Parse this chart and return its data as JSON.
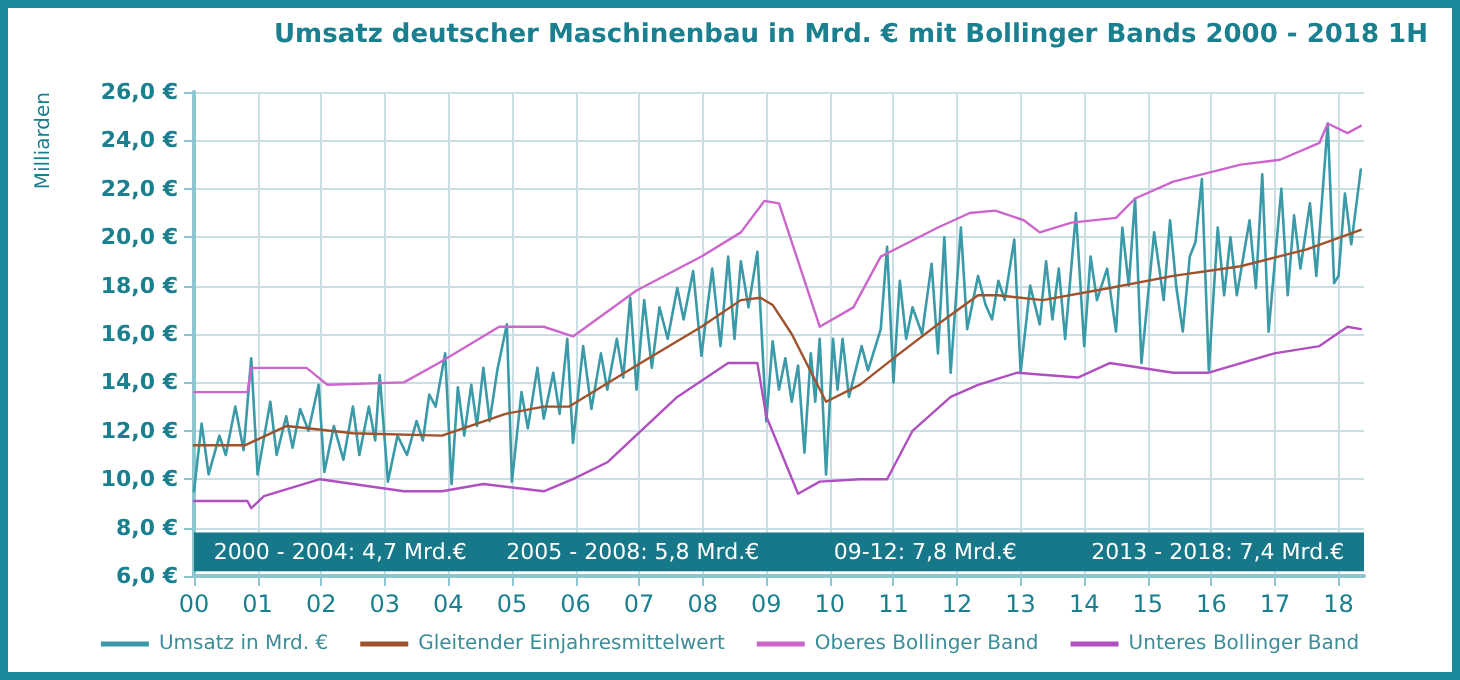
{
  "chart_data": {
    "type": "line",
    "title": "Umsatz deutscher Maschinenbau in Mrd. € mit Bollinger Bands 2000 - 2018 1H",
    "ylabel": "Milliarden",
    "xlim": [
      2000,
      2018.4
    ],
    "ylim": [
      6,
      26
    ],
    "xticks": [
      {
        "value": 2000,
        "label": "00"
      },
      {
        "value": 2001,
        "label": "01"
      },
      {
        "value": 2002,
        "label": "02"
      },
      {
        "value": 2003,
        "label": "03"
      },
      {
        "value": 2004,
        "label": "04"
      },
      {
        "value": 2005,
        "label": "05"
      },
      {
        "value": 2006,
        "label": "06"
      },
      {
        "value": 2007,
        "label": "07"
      },
      {
        "value": 2008,
        "label": "08"
      },
      {
        "value": 2009,
        "label": "09"
      },
      {
        "value": 2010,
        "label": "10"
      },
      {
        "value": 2011,
        "label": "11"
      },
      {
        "value": 2012,
        "label": "12"
      },
      {
        "value": 2013,
        "label": "13"
      },
      {
        "value": 2014,
        "label": "14"
      },
      {
        "value": 2015,
        "label": "15"
      },
      {
        "value": 2016,
        "label": "16"
      },
      {
        "value": 2017,
        "label": "17"
      },
      {
        "value": 2018,
        "label": "18"
      }
    ],
    "yticks": [
      {
        "value": 6,
        "label": "6,0 €"
      },
      {
        "value": 8,
        "label": "8,0 €"
      },
      {
        "value": 10,
        "label": "10,0 €"
      },
      {
        "value": 12,
        "label": "12,0 €"
      },
      {
        "value": 14,
        "label": "14,0 €"
      },
      {
        "value": 16,
        "label": "16,0 €"
      },
      {
        "value": 18,
        "label": "18,0 €"
      },
      {
        "value": 20,
        "label": "20,0 €"
      },
      {
        "value": 22,
        "label": "22,0 €"
      },
      {
        "value": 24,
        "label": "24,0 €"
      },
      {
        "value": 26,
        "label": "26,0 €"
      }
    ],
    "grid": true,
    "legend": "bottom",
    "marker": "none",
    "line_style": "solid",
    "bands": [
      {
        "axis": "y",
        "from": 6.2,
        "to": 7.8,
        "color": "#17788a"
      }
    ],
    "annotations": [
      "2000 - 2004: 4,7 Mrd.€",
      "2005 - 2008: 5,8 Mrd.€",
      "09-12: 7,8 Mrd.€",
      "2013 - 2018: 7,4 Mrd.€"
    ],
    "series": [
      {
        "name": "Umsatz in Mrd. €",
        "color": "#3a9aa8",
        "x": [
          2000.0,
          2000.12,
          2000.23,
          2000.4,
          2000.5,
          2000.65,
          2000.78,
          2000.9,
          2001.0,
          2001.2,
          2001.3,
          2001.45,
          2001.55,
          2001.67,
          2001.8,
          2001.96,
          2002.05,
          2002.2,
          2002.35,
          2002.5,
          2002.6,
          2002.75,
          2002.85,
          2002.92,
          2003.05,
          2003.2,
          2003.35,
          2003.5,
          2003.6,
          2003.7,
          2003.8,
          2003.95,
          2004.05,
          2004.15,
          2004.25,
          2004.36,
          2004.45,
          2004.55,
          2004.65,
          2004.77,
          2004.92,
          2005.0,
          2005.15,
          2005.25,
          2005.4,
          2005.5,
          2005.65,
          2005.75,
          2005.87,
          2005.96,
          2006.12,
          2006.25,
          2006.4,
          2006.5,
          2006.65,
          2006.75,
          2006.86,
          2006.96,
          2007.08,
          2007.2,
          2007.32,
          2007.45,
          2007.6,
          2007.7,
          2007.85,
          2007.98,
          2008.15,
          2008.28,
          2008.4,
          2008.5,
          2008.6,
          2008.72,
          2008.86,
          2009.0,
          2009.1,
          2009.2,
          2009.3,
          2009.4,
          2009.5,
          2009.6,
          2009.7,
          2009.77,
          2009.84,
          2009.94,
          2010.05,
          2010.12,
          2010.2,
          2010.3,
          2010.5,
          2010.6,
          2010.8,
          2010.9,
          2011.0,
          2011.1,
          2011.2,
          2011.3,
          2011.45,
          2011.6,
          2011.7,
          2011.8,
          2011.9,
          2012.06,
          2012.16,
          2012.33,
          2012.45,
          2012.55,
          2012.65,
          2012.75,
          2012.9,
          2013.0,
          2013.15,
          2013.3,
          2013.4,
          2013.5,
          2013.6,
          2013.7,
          2013.87,
          2014.0,
          2014.1,
          2014.2,
          2014.36,
          2014.5,
          2014.6,
          2014.7,
          2014.8,
          2014.9,
          2015.1,
          2015.25,
          2015.35,
          2015.45,
          2015.55,
          2015.66,
          2015.75,
          2015.85,
          2015.96,
          2016.1,
          2016.2,
          2016.3,
          2016.4,
          2016.6,
          2016.7,
          2016.8,
          2016.9,
          2017.1,
          2017.2,
          2017.3,
          2017.4,
          2017.55,
          2017.65,
          2017.83,
          2017.93,
          2018.0,
          2018.1,
          2018.2,
          2018.35
        ],
        "values": [
          9.5,
          12.3,
          10.2,
          11.8,
          11.0,
          13.0,
          11.2,
          15.0,
          10.2,
          13.2,
          11.0,
          12.6,
          11.3,
          12.9,
          12.0,
          13.9,
          10.3,
          12.2,
          10.8,
          13.0,
          11.0,
          13.0,
          11.6,
          14.3,
          9.9,
          11.8,
          11.0,
          12.4,
          11.6,
          13.5,
          13.0,
          15.2,
          9.8,
          13.8,
          11.8,
          13.9,
          12.2,
          14.6,
          12.4,
          14.5,
          16.4,
          9.9,
          13.6,
          12.1,
          14.6,
          12.5,
          14.4,
          12.7,
          15.8,
          11.5,
          15.5,
          12.9,
          15.2,
          13.7,
          15.8,
          14.2,
          17.5,
          13.7,
          17.4,
          14.6,
          17.1,
          15.8,
          17.9,
          16.6,
          18.6,
          15.1,
          18.7,
          15.5,
          19.2,
          15.8,
          19.0,
          17.1,
          19.4,
          12.4,
          15.7,
          13.7,
          15.0,
          13.2,
          14.7,
          11.1,
          15.2,
          13.2,
          15.8,
          10.2,
          15.8,
          13.7,
          15.8,
          13.4,
          15.5,
          14.5,
          16.2,
          19.6,
          14.0,
          18.2,
          15.8,
          17.1,
          16.0,
          18.9,
          15.2,
          20.0,
          14.4,
          20.4,
          16.2,
          18.4,
          17.2,
          16.6,
          18.2,
          17.4,
          19.9,
          14.4,
          18.0,
          16.4,
          19.0,
          16.6,
          18.7,
          15.8,
          21.0,
          15.5,
          19.2,
          17.4,
          18.7,
          16.1,
          20.4,
          18.0,
          21.6,
          14.8,
          20.2,
          17.4,
          20.7,
          17.9,
          16.1,
          19.2,
          19.8,
          22.4,
          14.5,
          20.4,
          17.6,
          20.0,
          17.6,
          20.7,
          17.9,
          22.6,
          16.1,
          22.0,
          17.6,
          20.9,
          18.7,
          21.4,
          18.4,
          24.7,
          18.1,
          18.4,
          21.8,
          19.7,
          22.8
        ]
      },
      {
        "name": "Gleitender Einjahresmittelwert",
        "color": "#a0522d",
        "x": [
          2000.0,
          2000.8,
          2001.46,
          2002.5,
          2003.9,
          2004.9,
          2005.5,
          2005.9,
          2006.96,
          2007.98,
          2008.6,
          2008.91,
          2009.1,
          2009.4,
          2009.94,
          2010.47,
          2011.1,
          2011.7,
          2012.33,
          2012.64,
          2013.35,
          2014.4,
          2015.4,
          2016.46,
          2017.5,
          2018.35
        ],
        "values": [
          11.4,
          11.4,
          12.2,
          11.9,
          11.8,
          12.7,
          13.0,
          13.0,
          14.7,
          16.3,
          17.4,
          17.5,
          17.2,
          16.0,
          13.2,
          13.9,
          15.2,
          16.4,
          17.6,
          17.6,
          17.4,
          17.9,
          18.4,
          18.8,
          19.5,
          20.3
        ]
      },
      {
        "name": "Oberes Bollinger Band",
        "color": "#cc66cc",
        "x": [
          2000.0,
          2000.84,
          2000.9,
          2001.77,
          2002.1,
          2003.3,
          2003.85,
          2004.8,
          2005.5,
          2005.96,
          2006.96,
          2007.98,
          2008.6,
          2008.97,
          2009.2,
          2009.84,
          2010.37,
          2010.8,
          2011.7,
          2012.2,
          2012.6,
          2013.05,
          2013.3,
          2013.8,
          2014.5,
          2014.8,
          2015.4,
          2016.46,
          2017.08,
          2017.7,
          2017.83,
          2018.14,
          2018.35
        ],
        "values": [
          13.6,
          13.6,
          14.6,
          14.6,
          13.9,
          14.0,
          14.8,
          16.3,
          16.3,
          15.9,
          17.8,
          19.2,
          20.2,
          21.5,
          21.4,
          16.3,
          17.1,
          19.2,
          20.4,
          21.0,
          21.1,
          20.7,
          20.2,
          20.6,
          20.8,
          21.6,
          22.3,
          23.0,
          23.2,
          23.9,
          24.7,
          24.3,
          24.6
        ]
      },
      {
        "name": "Unteres Bollinger Band",
        "color": "#b04fc0",
        "x": [
          2000.0,
          2000.84,
          2000.9,
          2001.1,
          2001.98,
          2003.3,
          2003.9,
          2004.55,
          2005.5,
          2005.96,
          2006.5,
          2007.6,
          2008.4,
          2008.86,
          2009.0,
          2009.5,
          2009.84,
          2010.47,
          2010.9,
          2011.3,
          2011.9,
          2012.33,
          2012.95,
          2013.9,
          2014.4,
          2015.4,
          2015.96,
          2016.99,
          2017.7,
          2018.14,
          2018.35
        ],
        "values": [
          9.1,
          9.1,
          8.8,
          9.3,
          10.0,
          9.5,
          9.5,
          9.8,
          9.5,
          10.0,
          10.7,
          13.4,
          14.8,
          14.8,
          12.6,
          9.4,
          9.9,
          10.0,
          10.0,
          12.0,
          13.4,
          13.9,
          14.4,
          14.2,
          14.8,
          14.4,
          14.4,
          15.2,
          15.5,
          16.3,
          16.2
        ]
      }
    ]
  }
}
